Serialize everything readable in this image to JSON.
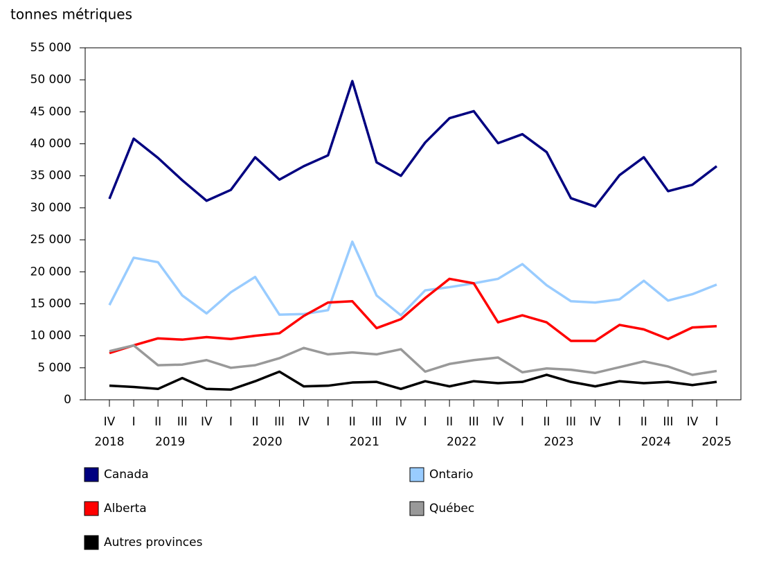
{
  "chart_data": {
    "type": "line",
    "y_label": "tonnes métriques",
    "categories": [
      "IV",
      "I",
      "II",
      "III",
      "IV",
      "I",
      "II",
      "III",
      "IV",
      "I",
      "II",
      "III",
      "IV",
      "I",
      "II",
      "III",
      "IV",
      "I",
      "II",
      "III",
      "IV",
      "I",
      "II",
      "III",
      "IV",
      "I"
    ],
    "groups": [
      {
        "label": "2018",
        "count": 1
      },
      {
        "label": "2019",
        "count": 4
      },
      {
        "label": "2020",
        "count": 4
      },
      {
        "label": "2021",
        "count": 4
      },
      {
        "label": "2022",
        "count": 4
      },
      {
        "label": "2023",
        "count": 4
      },
      {
        "label": "2024",
        "count": 4
      },
      {
        "label": "2025",
        "count": 1
      }
    ],
    "series": [
      {
        "name": "Canada",
        "color": "#000080",
        "values": [
          31400,
          40800,
          37800,
          34300,
          31100,
          32800,
          37900,
          34400,
          36500,
          38200,
          49800,
          37100,
          35000,
          40200,
          44000,
          45100,
          40100,
          41500,
          38700,
          31500,
          30200,
          35100,
          37900,
          32600,
          33600,
          36500
        ]
      },
      {
        "name": "Ontario",
        "color": "#99ccff",
        "values": [
          14800,
          22200,
          21500,
          16300,
          13500,
          16800,
          19200,
          13300,
          13400,
          14000,
          24700,
          16300,
          13200,
          17100,
          17600,
          18200,
          18900,
          21200,
          17900,
          15400,
          15200,
          15700,
          18600,
          15500,
          16500,
          18000
        ]
      },
      {
        "name": "Alberta",
        "color": "#ff0000",
        "values": [
          7300,
          8500,
          9600,
          9400,
          9800,
          9500,
          10000,
          10400,
          13100,
          15200,
          15400,
          11200,
          12600,
          15900,
          18900,
          18200,
          12100,
          13200,
          12100,
          9200,
          9200,
          11700,
          11000,
          9500,
          11300,
          11500
        ]
      },
      {
        "name": "Québec",
        "color": "#999999",
        "values": [
          7600,
          8500,
          5400,
          5500,
          6200,
          5000,
          5400,
          6500,
          8100,
          7100,
          7400,
          7100,
          7900,
          4400,
          5600,
          6200,
          6600,
          4300,
          4900,
          4700,
          4200,
          5100,
          6000,
          5200,
          3900,
          4500
        ]
      },
      {
        "name": "Autres provinces",
        "color": "#000000",
        "values": [
          2200,
          2000,
          1700,
          3400,
          1700,
          1600,
          2900,
          4400,
          2100,
          2200,
          2700,
          2800,
          1700,
          2900,
          2100,
          2900,
          2600,
          2800,
          3900,
          2800,
          2100,
          2900,
          2600,
          2800,
          2300,
          2800
        ]
      }
    ],
    "ylim": [
      0,
      55000
    ],
    "yticks": [
      0,
      {
        "value": 5000,
        "label": "5 000"
      },
      {
        "value": 10000,
        "label": "10 000"
      },
      {
        "value": 15000,
        "label": "15 000"
      },
      {
        "value": 20000,
        "label": "20 000"
      },
      {
        "value": 25000,
        "label": "25 000"
      },
      {
        "value": 30000,
        "label": "30 000"
      },
      {
        "value": 35000,
        "label": "35 000"
      },
      {
        "value": 40000,
        "label": "40 000"
      },
      {
        "value": 45000,
        "label": "45 000"
      },
      {
        "value": 50000,
        "label": "50 000"
      },
      {
        "value": 55000,
        "label": "55 000"
      }
    ]
  }
}
